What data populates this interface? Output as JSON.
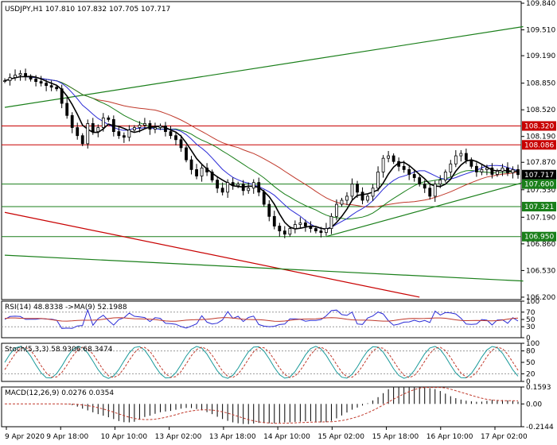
{
  "chart_data": [
    {
      "type": "candlestick",
      "title": "USDJPY,H1  107.810 107.832 107.705 107.717",
      "ylim": [
        106.17,
        109.86
      ],
      "y_ticks": [
        "109.840",
        "109.510",
        "109.190",
        "108.850",
        "108.520",
        "108.190",
        "107.870",
        "107.530",
        "107.190",
        "106.860",
        "106.530",
        "106.200"
      ],
      "x_ticks": [
        "9 Apr 2020",
        "9 Apr 18:00",
        "10 Apr 10:00",
        "13 Apr 02:00",
        "13 Apr 18:00",
        "14 Apr 10:00",
        "15 Apr 02:00",
        "15 Apr 18:00",
        "16 Apr 10:00",
        "17 Apr 02:00"
      ],
      "close_series": [
        108.88,
        108.92,
        108.95,
        108.97,
        108.93,
        108.9,
        108.87,
        108.85,
        108.82,
        108.8,
        108.78,
        108.6,
        108.45,
        108.3,
        108.2,
        108.1,
        108.35,
        108.25,
        108.3,
        108.42,
        108.4,
        108.25,
        108.2,
        108.18,
        108.27,
        108.3,
        108.33,
        108.35,
        108.28,
        108.3,
        108.32,
        108.25,
        108.2,
        108.15,
        108.05,
        107.9,
        107.78,
        107.7,
        107.8,
        107.75,
        107.65,
        107.55,
        107.5,
        107.62,
        107.58,
        107.6,
        107.52,
        107.55,
        107.62,
        107.5,
        107.35,
        107.2,
        107.08,
        107.02,
        106.98,
        107.05,
        107.1,
        107.12,
        107.08,
        107.05,
        107.02,
        107.0,
        107.05,
        107.2,
        107.35,
        107.4,
        107.45,
        107.6,
        107.5,
        107.4,
        107.45,
        107.55,
        107.75,
        107.92,
        107.95,
        107.88,
        107.82,
        107.78,
        107.72,
        107.68,
        107.6,
        107.55,
        107.45,
        107.6,
        107.65,
        107.75,
        107.85,
        107.95,
        107.98,
        107.9,
        107.82,
        107.75,
        107.78,
        107.8,
        107.72,
        107.76,
        107.8,
        107.74,
        107.78,
        107.717
      ],
      "price_labels": [
        {
          "price": 108.32,
          "text": "108.320",
          "color": "#c80000"
        },
        {
          "price": 108.086,
          "text": "108.086",
          "color": "#c80000"
        },
        {
          "price": 107.717,
          "text": "107.717",
          "color": "#000000"
        },
        {
          "price": 107.6,
          "text": "107.600",
          "color": "#1a7f1a"
        },
        {
          "price": 107.321,
          "text": "107.321",
          "color": "#1a7f1a"
        },
        {
          "price": 106.95,
          "text": "106.950",
          "color": "#1a7f1a"
        }
      ],
      "h_lines": [
        {
          "price": 108.32,
          "color": "#c80000"
        },
        {
          "price": 108.086,
          "color": "#c80000"
        },
        {
          "price": 107.6,
          "color": "#1a7f1a"
        },
        {
          "price": 107.321,
          "color": "#1a7f1a"
        },
        {
          "price": 106.95,
          "color": "#1a7f1a"
        }
      ],
      "trend_lines": [
        {
          "from": [
            0,
            108.55
          ],
          "to": [
            100,
            109.55
          ],
          "color": "#1a7f1a"
        },
        {
          "from": [
            0,
            107.25
          ],
          "to": [
            80,
            106.2
          ],
          "color": "#c80000"
        },
        {
          "from": [
            0,
            106.72
          ],
          "to": [
            100,
            106.4
          ],
          "color": "#1a7f1a"
        },
        {
          "from": [
            62,
            106.95
          ],
          "to": [
            100,
            107.62
          ],
          "color": "#1a7f1a"
        }
      ]
    },
    {
      "type": "line",
      "title": "RSI(14) 48.8338  ->MA(9) 52.1988",
      "ylim": [
        0,
        100
      ],
      "y_ticks": [
        "100",
        "70",
        "50",
        "30",
        "0"
      ]
    },
    {
      "type": "line",
      "title": "Stoch(5,3,3) 58.9306 68.3474",
      "ylim": [
        0,
        100
      ],
      "y_ticks": [
        "100",
        "80",
        "50",
        "20",
        "0"
      ]
    },
    {
      "type": "bar",
      "title": "MACD(12,26,9) 0.0276 0.0354",
      "ylim": [
        -0.2144,
        0.1593
      ],
      "y_ticks": [
        "0.1593",
        "0.00",
        "-0.2144"
      ]
    }
  ]
}
